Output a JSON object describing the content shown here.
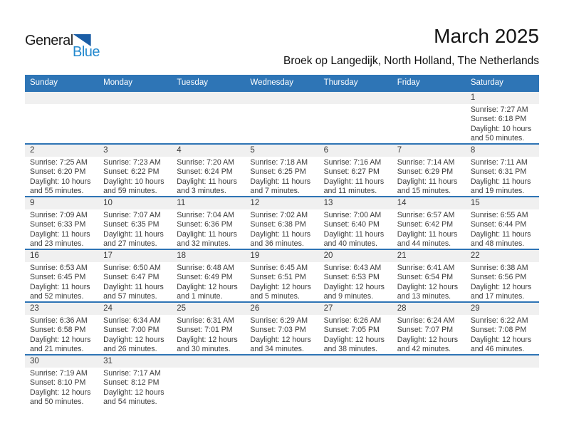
{
  "logo": {
    "part1": "General",
    "part2": "Blue",
    "triangle_icon": "flag-triangle-icon"
  },
  "header": {
    "title": "March 2025",
    "subtitle": "Broek op Langedijk, North Holland, The Netherlands"
  },
  "colors": {
    "header_bar": "#2E75B6",
    "row_divider": "#2E74B5",
    "number_band": "#F0F0F0",
    "logo_blue": "#2389CE",
    "logo_triangle": "#1B5EA6",
    "detail_text": "#3B3B3B"
  },
  "calendar": {
    "day_headers": [
      "Sunday",
      "Monday",
      "Tuesday",
      "Wednesday",
      "Thursday",
      "Friday",
      "Saturday"
    ],
    "weeks": [
      [
        null,
        null,
        null,
        null,
        null,
        null,
        {
          "day": "1",
          "sunrise": "Sunrise: 7:27 AM",
          "sunset": "Sunset: 6:18 PM",
          "daylight1": "Daylight: 10 hours",
          "daylight2": "and 50 minutes."
        }
      ],
      [
        {
          "day": "2",
          "sunrise": "Sunrise: 7:25 AM",
          "sunset": "Sunset: 6:20 PM",
          "daylight1": "Daylight: 10 hours",
          "daylight2": "and 55 minutes."
        },
        {
          "day": "3",
          "sunrise": "Sunrise: 7:23 AM",
          "sunset": "Sunset: 6:22 PM",
          "daylight1": "Daylight: 10 hours",
          "daylight2": "and 59 minutes."
        },
        {
          "day": "4",
          "sunrise": "Sunrise: 7:20 AM",
          "sunset": "Sunset: 6:24 PM",
          "daylight1": "Daylight: 11 hours",
          "daylight2": "and 3 minutes."
        },
        {
          "day": "5",
          "sunrise": "Sunrise: 7:18 AM",
          "sunset": "Sunset: 6:25 PM",
          "daylight1": "Daylight: 11 hours",
          "daylight2": "and 7 minutes."
        },
        {
          "day": "6",
          "sunrise": "Sunrise: 7:16 AM",
          "sunset": "Sunset: 6:27 PM",
          "daylight1": "Daylight: 11 hours",
          "daylight2": "and 11 minutes."
        },
        {
          "day": "7",
          "sunrise": "Sunrise: 7:14 AM",
          "sunset": "Sunset: 6:29 PM",
          "daylight1": "Daylight: 11 hours",
          "daylight2": "and 15 minutes."
        },
        {
          "day": "8",
          "sunrise": "Sunrise: 7:11 AM",
          "sunset": "Sunset: 6:31 PM",
          "daylight1": "Daylight: 11 hours",
          "daylight2": "and 19 minutes."
        }
      ],
      [
        {
          "day": "9",
          "sunrise": "Sunrise: 7:09 AM",
          "sunset": "Sunset: 6:33 PM",
          "daylight1": "Daylight: 11 hours",
          "daylight2": "and 23 minutes."
        },
        {
          "day": "10",
          "sunrise": "Sunrise: 7:07 AM",
          "sunset": "Sunset: 6:35 PM",
          "daylight1": "Daylight: 11 hours",
          "daylight2": "and 27 minutes."
        },
        {
          "day": "11",
          "sunrise": "Sunrise: 7:04 AM",
          "sunset": "Sunset: 6:36 PM",
          "daylight1": "Daylight: 11 hours",
          "daylight2": "and 32 minutes."
        },
        {
          "day": "12",
          "sunrise": "Sunrise: 7:02 AM",
          "sunset": "Sunset: 6:38 PM",
          "daylight1": "Daylight: 11 hours",
          "daylight2": "and 36 minutes."
        },
        {
          "day": "13",
          "sunrise": "Sunrise: 7:00 AM",
          "sunset": "Sunset: 6:40 PM",
          "daylight1": "Daylight: 11 hours",
          "daylight2": "and 40 minutes."
        },
        {
          "day": "14",
          "sunrise": "Sunrise: 6:57 AM",
          "sunset": "Sunset: 6:42 PM",
          "daylight1": "Daylight: 11 hours",
          "daylight2": "and 44 minutes."
        },
        {
          "day": "15",
          "sunrise": "Sunrise: 6:55 AM",
          "sunset": "Sunset: 6:44 PM",
          "daylight1": "Daylight: 11 hours",
          "daylight2": "and 48 minutes."
        }
      ],
      [
        {
          "day": "16",
          "sunrise": "Sunrise: 6:53 AM",
          "sunset": "Sunset: 6:45 PM",
          "daylight1": "Daylight: 11 hours",
          "daylight2": "and 52 minutes."
        },
        {
          "day": "17",
          "sunrise": "Sunrise: 6:50 AM",
          "sunset": "Sunset: 6:47 PM",
          "daylight1": "Daylight: 11 hours",
          "daylight2": "and 57 minutes."
        },
        {
          "day": "18",
          "sunrise": "Sunrise: 6:48 AM",
          "sunset": "Sunset: 6:49 PM",
          "daylight1": "Daylight: 12 hours",
          "daylight2": "and 1 minute."
        },
        {
          "day": "19",
          "sunrise": "Sunrise: 6:45 AM",
          "sunset": "Sunset: 6:51 PM",
          "daylight1": "Daylight: 12 hours",
          "daylight2": "and 5 minutes."
        },
        {
          "day": "20",
          "sunrise": "Sunrise: 6:43 AM",
          "sunset": "Sunset: 6:53 PM",
          "daylight1": "Daylight: 12 hours",
          "daylight2": "and 9 minutes."
        },
        {
          "day": "21",
          "sunrise": "Sunrise: 6:41 AM",
          "sunset": "Sunset: 6:54 PM",
          "daylight1": "Daylight: 12 hours",
          "daylight2": "and 13 minutes."
        },
        {
          "day": "22",
          "sunrise": "Sunrise: 6:38 AM",
          "sunset": "Sunset: 6:56 PM",
          "daylight1": "Daylight: 12 hours",
          "daylight2": "and 17 minutes."
        }
      ],
      [
        {
          "day": "23",
          "sunrise": "Sunrise: 6:36 AM",
          "sunset": "Sunset: 6:58 PM",
          "daylight1": "Daylight: 12 hours",
          "daylight2": "and 21 minutes."
        },
        {
          "day": "24",
          "sunrise": "Sunrise: 6:34 AM",
          "sunset": "Sunset: 7:00 PM",
          "daylight1": "Daylight: 12 hours",
          "daylight2": "and 26 minutes."
        },
        {
          "day": "25",
          "sunrise": "Sunrise: 6:31 AM",
          "sunset": "Sunset: 7:01 PM",
          "daylight1": "Daylight: 12 hours",
          "daylight2": "and 30 minutes."
        },
        {
          "day": "26",
          "sunrise": "Sunrise: 6:29 AM",
          "sunset": "Sunset: 7:03 PM",
          "daylight1": "Daylight: 12 hours",
          "daylight2": "and 34 minutes."
        },
        {
          "day": "27",
          "sunrise": "Sunrise: 6:26 AM",
          "sunset": "Sunset: 7:05 PM",
          "daylight1": "Daylight: 12 hours",
          "daylight2": "and 38 minutes."
        },
        {
          "day": "28",
          "sunrise": "Sunrise: 6:24 AM",
          "sunset": "Sunset: 7:07 PM",
          "daylight1": "Daylight: 12 hours",
          "daylight2": "and 42 minutes."
        },
        {
          "day": "29",
          "sunrise": "Sunrise: 6:22 AM",
          "sunset": "Sunset: 7:08 PM",
          "daylight1": "Daylight: 12 hours",
          "daylight2": "and 46 minutes."
        }
      ],
      [
        {
          "day": "30",
          "sunrise": "Sunrise: 7:19 AM",
          "sunset": "Sunset: 8:10 PM",
          "daylight1": "Daylight: 12 hours",
          "daylight2": "and 50 minutes."
        },
        {
          "day": "31",
          "sunrise": "Sunrise: 7:17 AM",
          "sunset": "Sunset: 8:12 PM",
          "daylight1": "Daylight: 12 hours",
          "daylight2": "and 54 minutes."
        },
        null,
        null,
        null,
        null,
        null
      ]
    ]
  }
}
